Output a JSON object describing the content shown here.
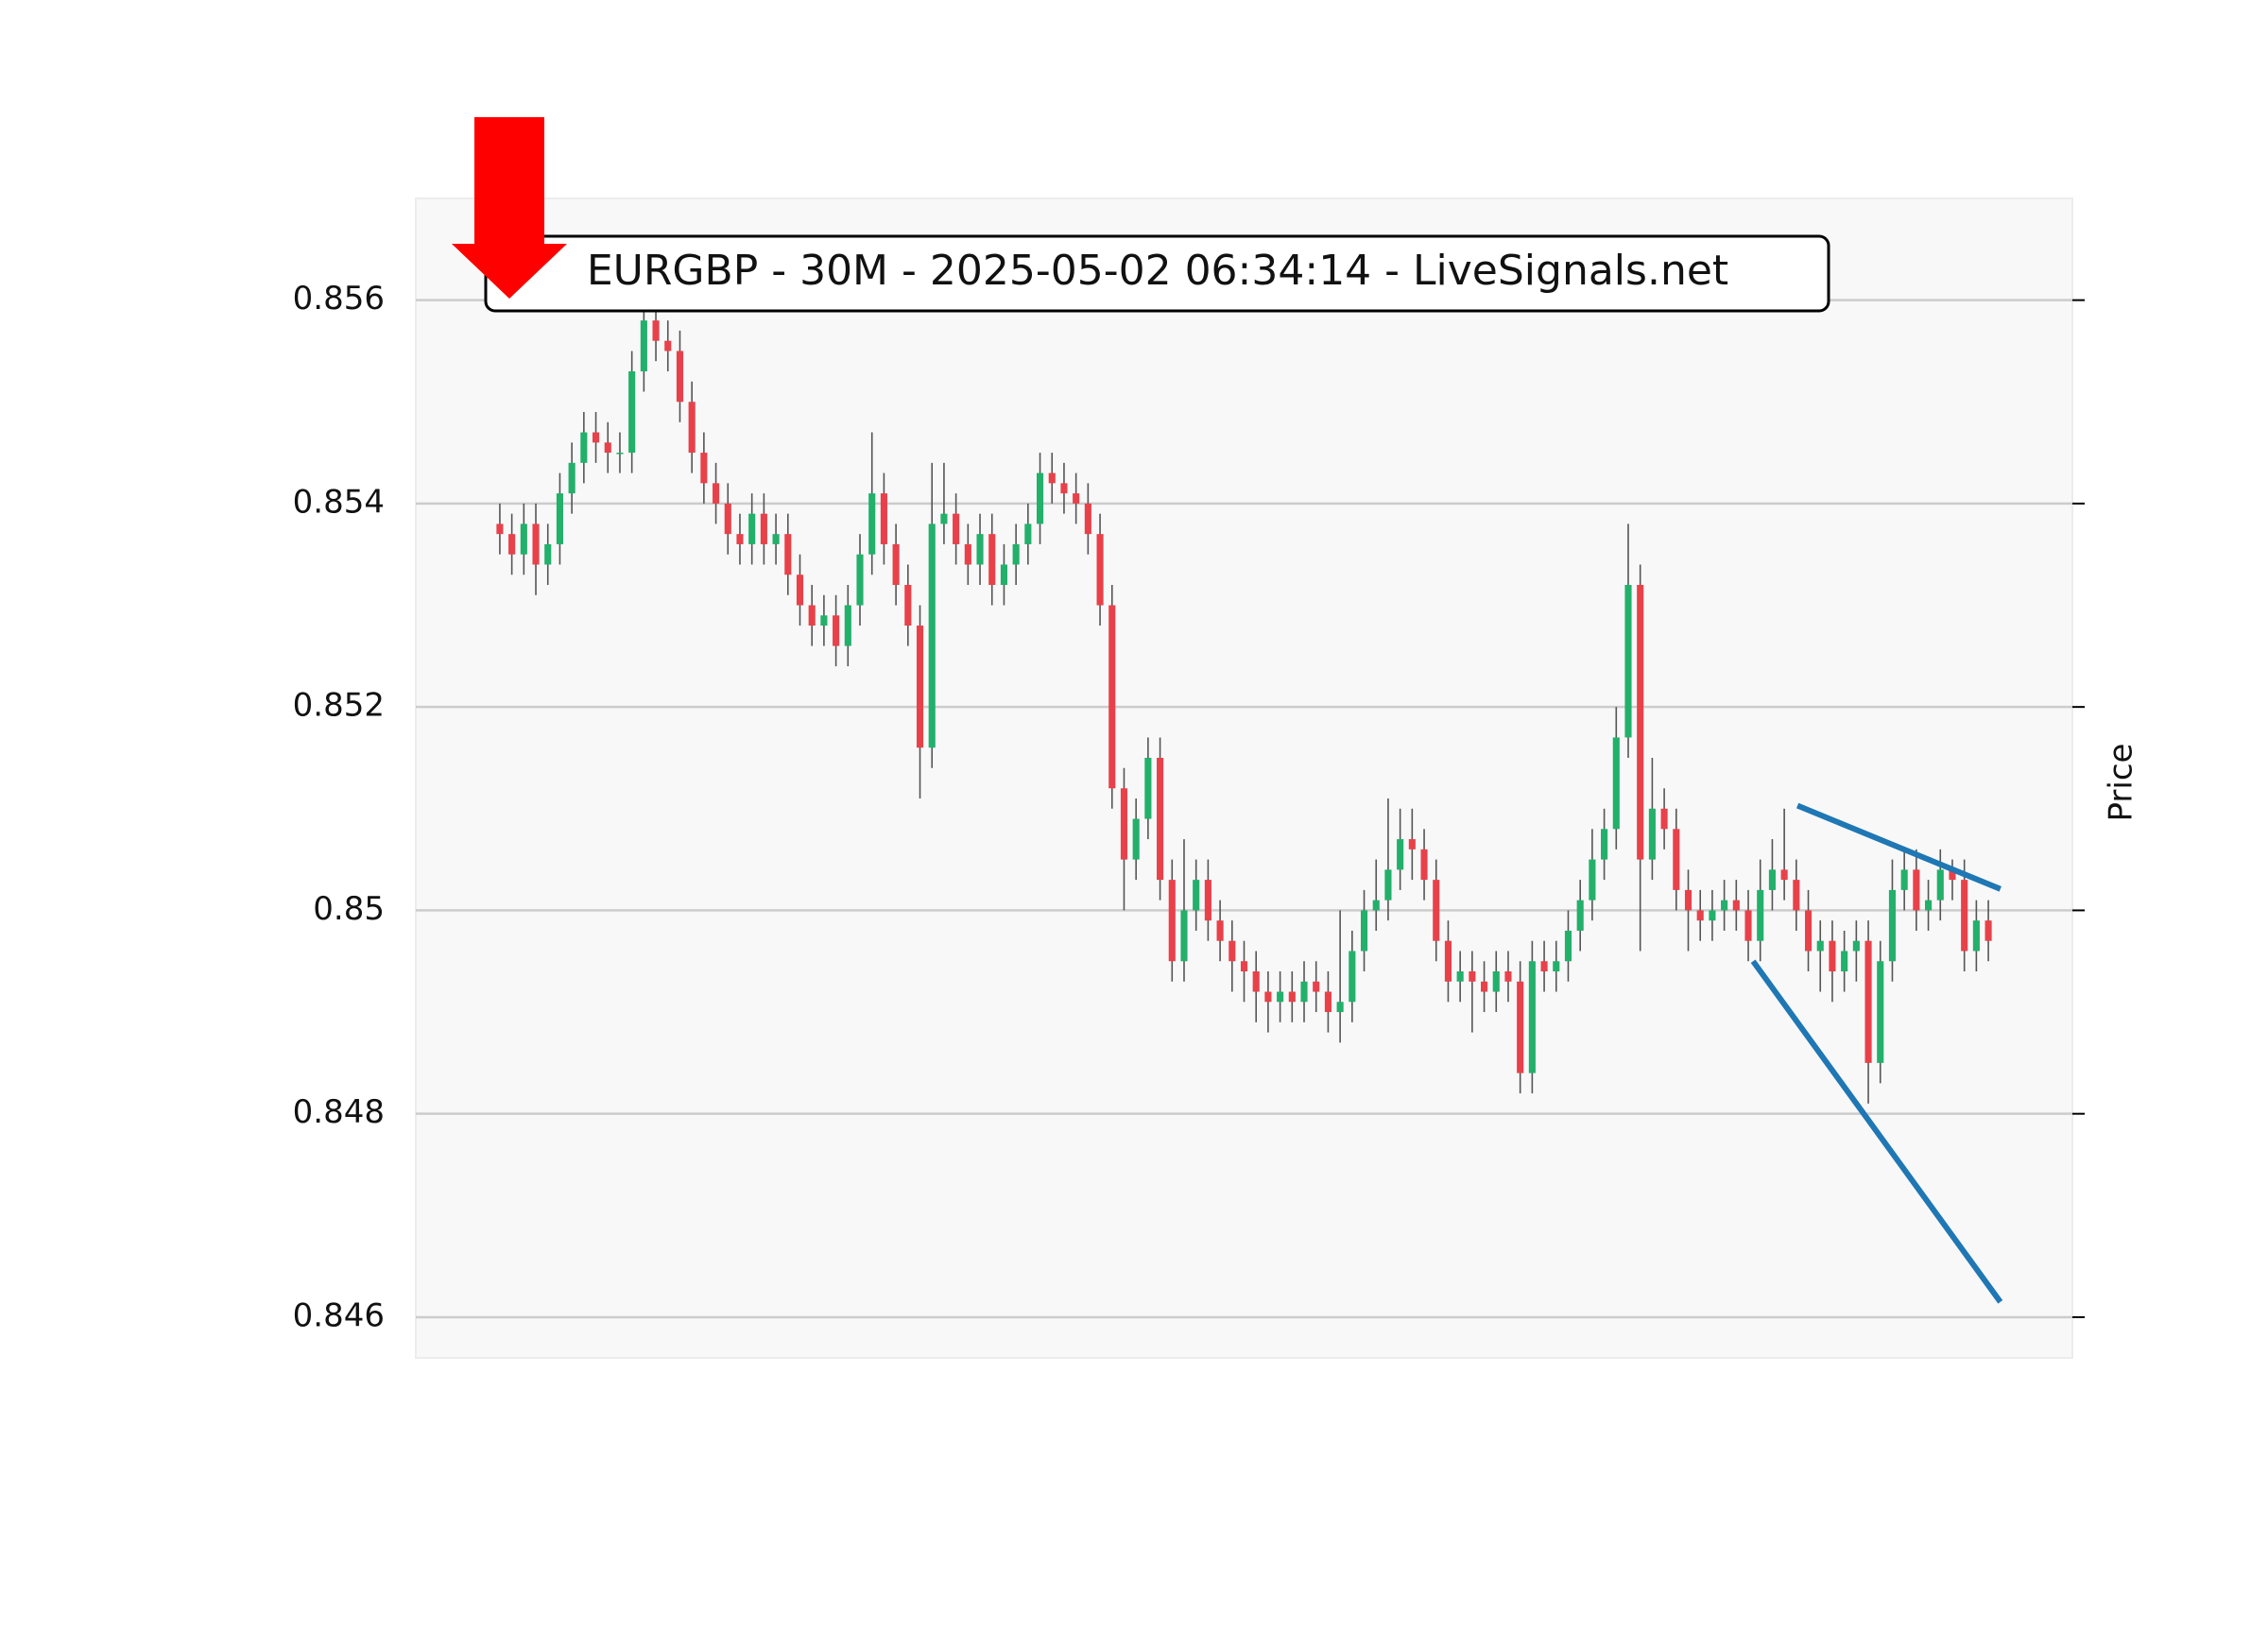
{
  "chart_data": {
    "type": "candlestick",
    "title": "EURGBP - 30M - 2025-05-02 06:34:14 - LiveSignals.net",
    "ylabel": "Price",
    "ylim": [
      0.8456,
      0.857
    ],
    "yticks": [
      0.846,
      0.848,
      0.85,
      0.852,
      0.854,
      0.856
    ],
    "xlim": [
      -7,
      131
    ],
    "grid": true,
    "up_color": "#22b06b",
    "down_color": "#e8414a",
    "wick_color": "#555555",
    "open": [
      0.8538,
      0.8537,
      0.8535,
      0.8538,
      0.8534,
      0.8536,
      0.8541,
      0.8544,
      0.8547,
      0.8546,
      0.8545,
      0.8545,
      0.8553,
      0.8558,
      0.8556,
      0.8555,
      0.855,
      0.8545,
      0.8542,
      0.854,
      0.8537,
      0.8536,
      0.8539,
      0.8536,
      0.8537,
      0.8533,
      0.853,
      0.8528,
      0.8529,
      0.8526,
      0.853,
      0.8535,
      0.8541,
      0.8536,
      0.8532,
      0.8528,
      0.8516,
      0.8538,
      0.8539,
      0.8536,
      0.8534,
      0.8537,
      0.8532,
      0.8534,
      0.8536,
      0.8538,
      0.8543,
      0.8542,
      0.8541,
      0.854,
      0.8537,
      0.853,
      0.8512,
      0.8505,
      0.8509,
      0.8515,
      0.8503,
      0.8495,
      0.85,
      0.8503,
      0.8499,
      0.8497,
      0.8495,
      0.8494,
      0.8492,
      0.8491,
      0.8492,
      0.8491,
      0.8493,
      0.8492,
      0.849,
      0.8491,
      0.8496,
      0.85,
      0.8501,
      0.8504,
      0.8507,
      0.8506,
      0.8503,
      0.8497,
      0.8493,
      0.8494,
      0.8493,
      0.8492,
      0.8494,
      0.8493,
      0.8484,
      0.8495,
      0.8494,
      0.8495,
      0.8498,
      0.8501,
      0.8505,
      0.8508,
      0.8517,
      0.8532,
      0.8505,
      0.851,
      0.8508,
      0.8502,
      0.85,
      0.8499,
      0.85,
      0.8501,
      0.85,
      0.8497,
      0.8502,
      0.8504,
      0.8503,
      0.85,
      0.8496,
      0.8497,
      0.8494,
      0.8496,
      0.8497,
      0.8485,
      0.8495,
      0.8502,
      0.8504,
      0.85,
      0.8501,
      0.8504,
      0.8503,
      0.8496,
      0.8499
    ],
    "high": [
      0.854,
      0.8539,
      0.854,
      0.854,
      0.8538,
      0.8543,
      0.8546,
      0.8549,
      0.8549,
      0.8548,
      0.8547,
      0.8555,
      0.856,
      0.856,
      0.8558,
      0.8557,
      0.8552,
      0.8547,
      0.8544,
      0.8542,
      0.8539,
      0.8541,
      0.8541,
      0.8539,
      0.8539,
      0.8535,
      0.8532,
      0.8531,
      0.8531,
      0.8532,
      0.8537,
      0.8547,
      0.8543,
      0.8538,
      0.8534,
      0.853,
      0.8544,
      0.8544,
      0.8541,
      0.8538,
      0.8539,
      0.8539,
      0.8536,
      0.8538,
      0.854,
      0.8545,
      0.8545,
      0.8544,
      0.8543,
      0.8542,
      0.8539,
      0.8532,
      0.8514,
      0.8511,
      0.8517,
      0.8517,
      0.8505,
      0.8507,
      0.8505,
      0.8505,
      0.8501,
      0.8499,
      0.8497,
      0.8496,
      0.8494,
      0.8494,
      0.8494,
      0.8495,
      0.8495,
      0.8494,
      0.85,
      0.8498,
      0.8502,
      0.8505,
      0.8511,
      0.851,
      0.851,
      0.8508,
      0.8505,
      0.8499,
      0.8496,
      0.8496,
      0.8495,
      0.8496,
      0.8496,
      0.8495,
      0.8497,
      0.8497,
      0.8497,
      0.85,
      0.8503,
      0.8508,
      0.851,
      0.852,
      0.8538,
      0.8534,
      0.8515,
      0.8512,
      0.851,
      0.8504,
      0.8502,
      0.8502,
      0.8503,
      0.8503,
      0.8502,
      0.8505,
      0.8507,
      0.851,
      0.8505,
      0.8502,
      0.8499,
      0.8499,
      0.8498,
      0.8499,
      0.8499,
      0.8497,
      0.8505,
      0.8506,
      0.8506,
      0.8503,
      0.8506,
      0.8505,
      0.8505,
      0.8501,
      0.8501
    ],
    "low": [
      0.8535,
      0.8533,
      0.8533,
      0.8531,
      0.8532,
      0.8534,
      0.8539,
      0.8542,
      0.8544,
      0.8543,
      0.8543,
      0.8543,
      0.8551,
      0.8554,
      0.8553,
      0.8548,
      0.8543,
      0.854,
      0.8538,
      0.8535,
      0.8534,
      0.8534,
      0.8534,
      0.8534,
      0.8531,
      0.8528,
      0.8526,
      0.8526,
      0.8524,
      0.8524,
      0.8528,
      0.8533,
      0.8534,
      0.853,
      0.8526,
      0.8511,
      0.8514,
      0.8536,
      0.8534,
      0.8532,
      0.8532,
      0.853,
      0.853,
      0.8532,
      0.8534,
      0.8536,
      0.854,
      0.8539,
      0.8538,
      0.8535,
      0.8528,
      0.851,
      0.85,
      0.8503,
      0.8507,
      0.8501,
      0.8493,
      0.8493,
      0.8498,
      0.8497,
      0.8495,
      0.8492,
      0.8491,
      0.8489,
      0.8488,
      0.8489,
      0.8489,
      0.8489,
      0.849,
      0.8488,
      0.8487,
      0.8489,
      0.8494,
      0.8498,
      0.8499,
      0.8502,
      0.8503,
      0.8501,
      0.8495,
      0.8491,
      0.8491,
      0.8488,
      0.849,
      0.849,
      0.8491,
      0.8482,
      0.8482,
      0.8492,
      0.8492,
      0.8493,
      0.8496,
      0.8499,
      0.8503,
      0.8506,
      0.8515,
      0.8496,
      0.8503,
      0.8506,
      0.85,
      0.8496,
      0.8497,
      0.8497,
      0.8498,
      0.8498,
      0.8495,
      0.8495,
      0.85,
      0.8501,
      0.8498,
      0.8494,
      0.8492,
      0.8491,
      0.8492,
      0.8493,
      0.8481,
      0.8483,
      0.8493,
      0.85,
      0.8498,
      0.8498,
      0.8499,
      0.8501,
      0.8494,
      0.8494,
      0.8495
    ],
    "close": [
      0.8537,
      0.8535,
      0.8538,
      0.8534,
      0.8536,
      0.8541,
      0.8544,
      0.8547,
      0.8546,
      0.8545,
      0.8545,
      0.8553,
      0.8558,
      0.8556,
      0.8555,
      0.855,
      0.8545,
      0.8542,
      0.854,
      0.8537,
      0.8536,
      0.8539,
      0.8536,
      0.8537,
      0.8533,
      0.853,
      0.8528,
      0.8529,
      0.8526,
      0.853,
      0.8535,
      0.8541,
      0.8536,
      0.8532,
      0.8528,
      0.8516,
      0.8538,
      0.8539,
      0.8536,
      0.8534,
      0.8537,
      0.8532,
      0.8534,
      0.8536,
      0.8538,
      0.8543,
      0.8542,
      0.8541,
      0.854,
      0.8537,
      0.853,
      0.8512,
      0.8505,
      0.8509,
      0.8515,
      0.8503,
      0.8495,
      0.85,
      0.8503,
      0.8499,
      0.8497,
      0.8495,
      0.8494,
      0.8492,
      0.8491,
      0.8492,
      0.8491,
      0.8493,
      0.8492,
      0.849,
      0.8491,
      0.8496,
      0.85,
      0.8501,
      0.8504,
      0.8507,
      0.8506,
      0.8503,
      0.8497,
      0.8493,
      0.8494,
      0.8493,
      0.8492,
      0.8494,
      0.8493,
      0.8484,
      0.8495,
      0.8494,
      0.8495,
      0.8498,
      0.8501,
      0.8505,
      0.8508,
      0.8517,
      0.8532,
      0.8505,
      0.851,
      0.8508,
      0.8502,
      0.85,
      0.8499,
      0.85,
      0.8501,
      0.85,
      0.8497,
      0.8502,
      0.8504,
      0.8503,
      0.85,
      0.8496,
      0.8497,
      0.8494,
      0.8496,
      0.8497,
      0.8485,
      0.8495,
      0.8502,
      0.8504,
      0.85,
      0.8501,
      0.8504,
      0.8503,
      0.8496,
      0.8499,
      0.8497
    ],
    "lines": [
      {
        "color": "#1f77b4",
        "x": [
          108.1,
          125
        ],
        "y": [
          0.85103,
          0.85021
        ]
      },
      {
        "color": "#1f77b4",
        "x": [
          104.4,
          125
        ],
        "y": [
          0.8495,
          0.84615
        ]
      }
    ]
  }
}
